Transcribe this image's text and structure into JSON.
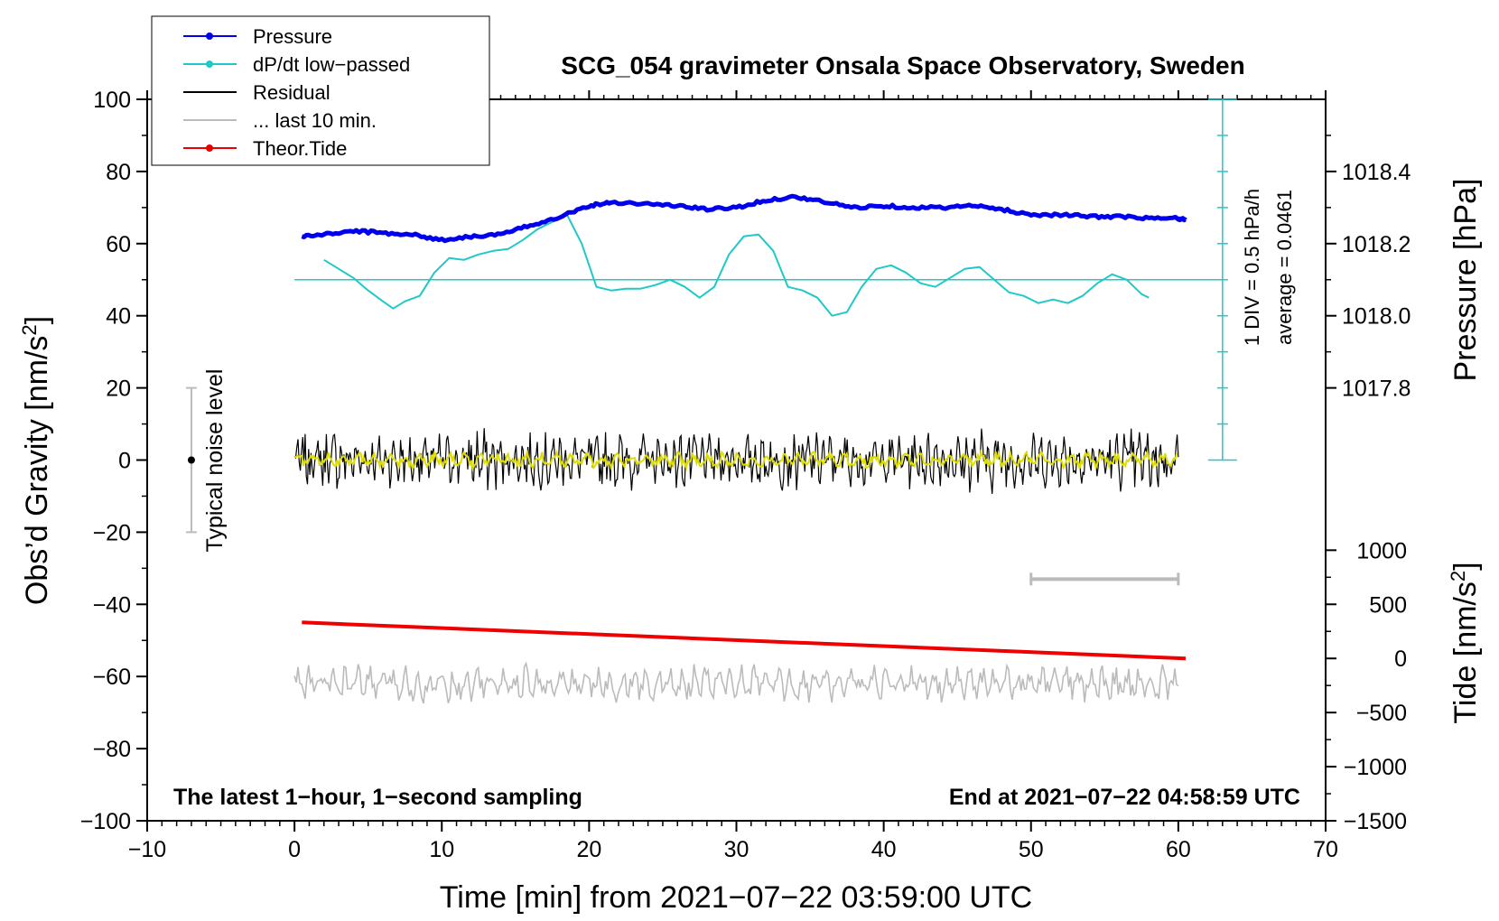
{
  "chart_data": {
    "type": "line",
    "title": "SCG_054 gravimeter Onsala Space Observatory, Sweden",
    "xlabel": "Time [min] from 2021−07−22 03:59:00 UTC",
    "ylabel": "Obs’d Gravity [nm/s",
    "ylabel_sup": "2",
    "ylabel_end": "]",
    "y2label": "Pressure [hPa]",
    "y3label": "Tide [nm/s",
    "y3label_sup": "2",
    "y3label_end": "]",
    "xlim": [
      -10,
      70
    ],
    "ylim": [
      -100,
      100
    ],
    "x_ticks": [
      -10,
      0,
      10,
      20,
      30,
      40,
      50,
      60,
      70
    ],
    "x_tick_labels": [
      "−10",
      "0",
      "10",
      "20",
      "30",
      "40",
      "50",
      "60",
      "70"
    ],
    "y_ticks": [
      100,
      80,
      60,
      40,
      20,
      0,
      -20,
      -40,
      -60,
      -80,
      -100
    ],
    "y_tick_labels": [
      "100",
      "80",
      "60",
      "40",
      "20",
      "0",
      "−20",
      "−40",
      "−60",
      "−80",
      "−100"
    ],
    "pressure_axis": {
      "ticks": [
        1018.4,
        1018.2,
        1018.0,
        1017.8
      ],
      "labels": [
        "1018.4",
        "1018.2",
        "1018.0",
        "1017.8"
      ],
      "anchor_value": 1018.0,
      "anchor_gravity": 40,
      "units_per_grav": 0.01
    },
    "tide_axis": {
      "ticks": [
        1000,
        500,
        0,
        -500,
        -1000,
        -1500
      ],
      "labels": [
        "1000",
        "500",
        "0",
        "−500",
        "−1000",
        "−1500"
      ],
      "anchor_value": -1500,
      "anchor_gravity": -100,
      "units_per_grav": 33.33
    },
    "legend": {
      "position": "top-left",
      "entries": [
        {
          "label": "Pressure",
          "color": "#0000ee",
          "marker": true
        },
        {
          "label": "dP/dt low−passed",
          "color": "#20c8c8",
          "marker": true
        },
        {
          "label": "Residual",
          "color": "#000000",
          "marker": false
        },
        {
          "label": "... last 10 min.",
          "color": "#bbbbbb",
          "marker": false
        },
        {
          "label": "Theor.Tide",
          "color": "#ee0000",
          "marker": true
        }
      ]
    },
    "annotations": {
      "bottom_left": "The latest 1−hour, 1−second sampling",
      "bottom_right": "End at 2021−07−22 04:58:59 UTC",
      "noise_label": "Typical noise level",
      "noise_range": [
        -20,
        20
      ],
      "div_label": "1 DIV = 0.5 hPa/h",
      "average_label": "average = 0.0461",
      "scale_bar_x": [
        50,
        60
      ]
    },
    "series": [
      {
        "name": "Pressure",
        "color": "#0000ee",
        "x": [
          0.5,
          2,
          4,
          6,
          8,
          10,
          12,
          14,
          16,
          18,
          20,
          21.5,
          24,
          26,
          28,
          30,
          32,
          34,
          36,
          38,
          40,
          42,
          44,
          46,
          48,
          50,
          52,
          54,
          56,
          58,
          60,
          60.5
        ],
        "y": [
          62,
          62.5,
          63.5,
          63,
          62.5,
          61,
          62,
          62.5,
          65,
          67.5,
          70.5,
          71.5,
          71,
          70.5,
          69.5,
          70,
          72,
          73,
          71.5,
          70,
          70.5,
          70,
          70,
          70.5,
          69.5,
          68,
          68,
          67.5,
          67.5,
          67,
          67,
          66.5
        ]
      },
      {
        "name": "dP/dt low-passed",
        "color": "#20c8c8",
        "baseline": 50,
        "x": [
          2,
          3,
          4,
          5,
          6,
          6.7,
          7.5,
          8.5,
          9.5,
          10.5,
          11.5,
          12.5,
          13.5,
          14.5,
          15.5,
          16.5,
          17.5,
          18.5,
          19.5,
          20.5,
          21.5,
          22.5,
          23.5,
          24.5,
          25.5,
          26.5,
          27.5,
          28.5,
          29.5,
          30.5,
          31.5,
          32.5,
          33.5,
          34.5,
          35.5,
          36.5,
          37.5,
          38.5,
          39.5,
          40.5,
          41.5,
          42.5,
          43.5,
          44.5,
          45.5,
          46.5,
          47.5,
          48.5,
          49.5,
          50.5,
          51.5,
          52.5,
          53.5,
          54.5,
          55.5,
          56.5,
          57.5,
          58
        ],
        "y": [
          55.5,
          53,
          50.5,
          47,
          44,
          42,
          44,
          45.5,
          52,
          56,
          55.5,
          57,
          58,
          58.5,
          61,
          64,
          66,
          68,
          60,
          48,
          47,
          47.5,
          47.5,
          48.5,
          50,
          48,
          45,
          48,
          57,
          62,
          62.5,
          58,
          48,
          47,
          45,
          40,
          41,
          48,
          53,
          54,
          52,
          49,
          48,
          50.5,
          53,
          53.5,
          50,
          46.5,
          45.5,
          43.5,
          44.5,
          43.5,
          45.5,
          49,
          51.5,
          50,
          46,
          45
        ]
      },
      {
        "name": "Residual",
        "color": "#000000",
        "x_range": [
          0,
          60
        ],
        "amplitude": 7
      },
      {
        "name": "Residual low-passed",
        "color": "#dddd00",
        "x_range": [
          0,
          60
        ],
        "amplitude": 2
      },
      {
        "name": "... last 10 min.",
        "color": "#bbbbbb",
        "x_range": [
          0,
          60
        ],
        "center": -62,
        "amplitude": 4.5
      },
      {
        "name": "Theor.Tide",
        "color": "#ee0000",
        "x": [
          0.5,
          60.5
        ],
        "y": [
          -45,
          -55
        ]
      }
    ]
  }
}
